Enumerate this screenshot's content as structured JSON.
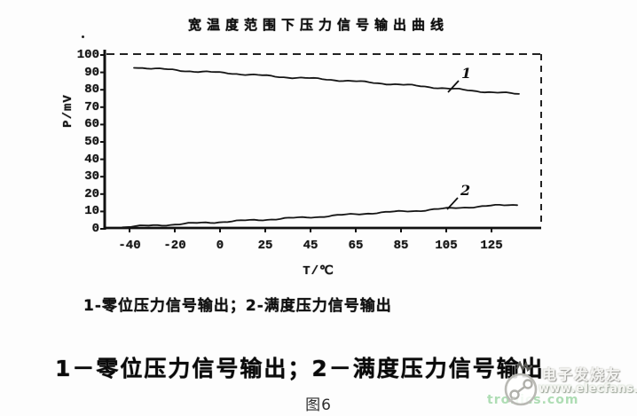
{
  "figure": {
    "title": "宽温度范围下压力信号输出曲线",
    "caption_small": "1-零位压力信号输出；2-满度压力信号输出",
    "caption_large": "1－零位压力信号输出；2－满度压力信号输出",
    "figure_label": "图6"
  },
  "watermark": {
    "brand": "电子发烧友",
    "url": "www.elecfans.com",
    "url_ghost": "tronics.com",
    "green": "#57b55a"
  },
  "chart_data": {
    "type": "line",
    "title": "宽温度范围下压力信号输出曲线",
    "xlabel": "T/℃",
    "ylabel": "P/mV",
    "x_ticks": [
      "-40",
      "-20",
      "0",
      "25",
      "45",
      "65",
      "85",
      "105",
      "125"
    ],
    "y_ticks": [
      100,
      90,
      80,
      70,
      60,
      50,
      40,
      30,
      20,
      10,
      0
    ],
    "ylim": [
      0,
      100
    ],
    "grid": false,
    "legend_position": "none",
    "line_color": "#161616",
    "series": [
      {
        "name": "1",
        "label": "零位压力信号输出",
        "values": [
          93,
          91,
          89.5,
          87.5,
          86,
          84,
          82,
          79.5,
          77.5
        ]
      },
      {
        "name": "2",
        "label": "满度压力信号输出",
        "values": [
          1,
          2.5,
          4,
          5.5,
          7,
          9,
          10.5,
          12.5,
          14
        ]
      }
    ],
    "annotations": [
      {
        "text": "1",
        "points_to_series": "1"
      },
      {
        "text": "2",
        "points_to_series": "2"
      }
    ]
  }
}
